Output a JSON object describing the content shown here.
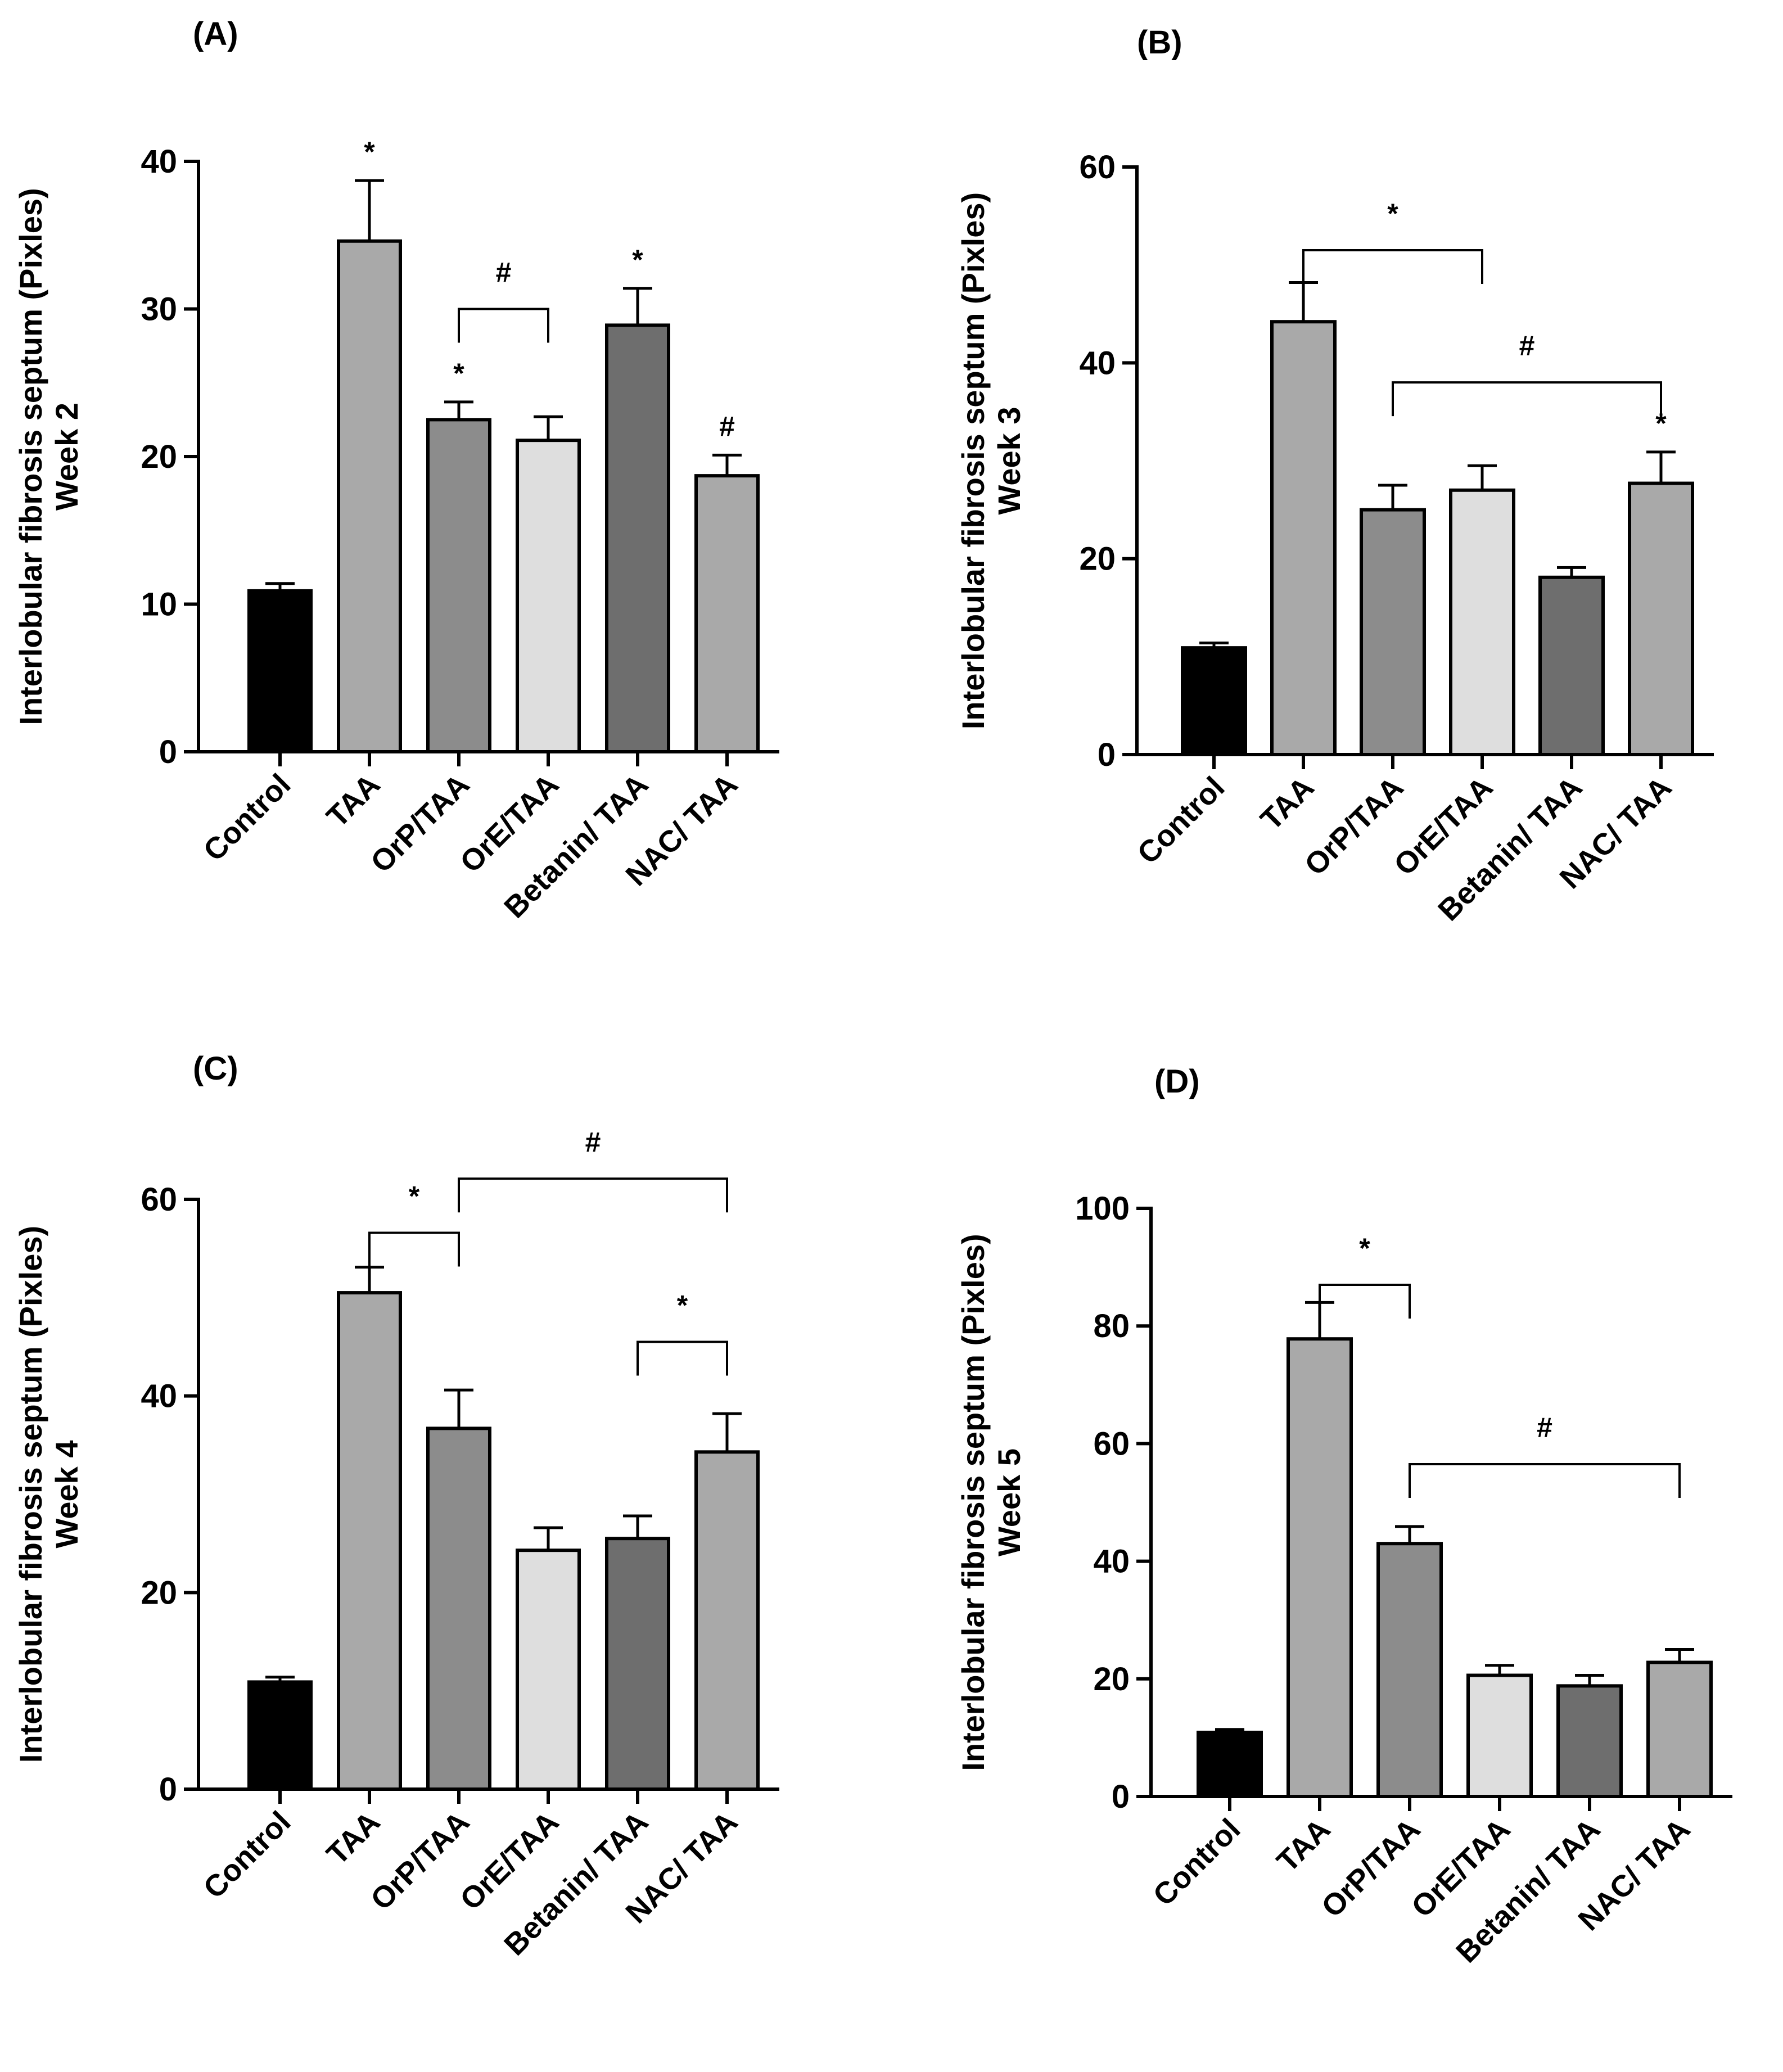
{
  "figure": {
    "panels": [
      "(A)",
      "(B)",
      "(C)",
      "(D)"
    ]
  },
  "chart_data": [
    {
      "type": "bar",
      "panel_label": "(A)",
      "ylabel_line1": "Interlobular fibrosis septum (Pixles)",
      "ylabel_line2": "Week 2",
      "categories": [
        "Control",
        "TAA",
        "OrP/TAA",
        "OrE/TAA",
        "Betanin/ TAA",
        "NAC/ TAA"
      ],
      "values": [
        10.9,
        34.6,
        22.5,
        21.1,
        28.9,
        18.7
      ],
      "errors": [
        0.5,
        4.1,
        1.2,
        1.6,
        2.5,
        1.4
      ],
      "colors": [
        "#000000",
        "#a9a9a9",
        "#8c8c8c",
        "#dedede",
        "#6e6e6e",
        "#a9a9a9"
      ],
      "ylim": [
        0,
        40
      ],
      "yticks": [
        0,
        10,
        20,
        30,
        40
      ],
      "bar_marks": [
        "",
        "*",
        "*",
        "",
        "*",
        "#"
      ],
      "brackets": [
        {
          "from": 2,
          "to": 3,
          "label": "#",
          "y": 30
        }
      ]
    },
    {
      "type": "bar",
      "panel_label": "(B)",
      "ylabel_line1": "Interlobular fibrosis septum (Pixles)",
      "ylabel_line2": "Week 3",
      "categories": [
        "Control",
        "TAA",
        "OrP/TAA",
        "OrE/TAA",
        "Betanin/ TAA",
        "NAC/ TAA"
      ],
      "values": [
        10.9,
        44.2,
        25.0,
        27.0,
        18.1,
        27.7
      ],
      "errors": [
        0.5,
        4.0,
        2.5,
        2.5,
        1.0,
        3.2
      ],
      "colors": [
        "#000000",
        "#a9a9a9",
        "#8c8c8c",
        "#dedede",
        "#6e6e6e",
        "#a9a9a9"
      ],
      "ylim": [
        0,
        60
      ],
      "yticks": [
        0,
        20,
        40,
        60
      ],
      "bar_marks": [
        "",
        "",
        "",
        "",
        "",
        "*"
      ],
      "brackets": [
        {
          "from": 1,
          "to": 3,
          "label": "*",
          "y": 51.5
        },
        {
          "from": 2,
          "to": 5,
          "label": "#",
          "y": 38
        }
      ]
    },
    {
      "type": "bar",
      "panel_label": "(C)",
      "ylabel_line1": "Interlobular fibrosis septum (Pixles)",
      "ylabel_line2": "Week 4",
      "categories": [
        "Control",
        "TAA",
        "OrP/TAA",
        "OrE/TAA",
        "Betanin/ TAA",
        "NAC/ TAA"
      ],
      "values": [
        10.9,
        50.5,
        36.7,
        24.3,
        25.5,
        34.3
      ],
      "errors": [
        0.5,
        2.6,
        3.9,
        2.3,
        2.3,
        3.9
      ],
      "colors": [
        "#000000",
        "#a9a9a9",
        "#8c8c8c",
        "#dedede",
        "#6e6e6e",
        "#a9a9a9"
      ],
      "ylim": [
        0,
        60
      ],
      "yticks": [
        0,
        20,
        40,
        60
      ],
      "bar_marks": [
        "",
        "",
        "",
        "",
        "",
        ""
      ],
      "brackets": [
        {
          "from": 1,
          "to": 2,
          "label": "*",
          "y": 56.6
        },
        {
          "from": 2,
          "to": 5,
          "label": "#",
          "y": 62.1
        },
        {
          "from": 4,
          "to": 5,
          "label": "*",
          "y": 45.5
        }
      ]
    },
    {
      "type": "bar",
      "panel_label": "(D)",
      "ylabel_line1": "Interlobular fibrosis septum (Pixles)",
      "ylabel_line2": "Week 5",
      "categories": [
        "Control",
        "TAA",
        "OrP/TAA",
        "OrE/TAA",
        "Betanin/ TAA",
        "NAC/ TAA"
      ],
      "values": [
        10.9,
        77.8,
        43.0,
        20.6,
        18.8,
        22.8
      ],
      "errors": [
        0.5,
        6.2,
        2.9,
        1.7,
        1.8,
        2.2
      ],
      "colors": [
        "#000000",
        "#a9a9a9",
        "#8c8c8c",
        "#dedede",
        "#6e6e6e",
        "#a9a9a9"
      ],
      "ylim": [
        0,
        100
      ],
      "yticks": [
        0,
        20,
        40,
        60,
        80,
        100
      ],
      "bar_marks": [
        "",
        "",
        "",
        "",
        "",
        ""
      ],
      "brackets": [
        {
          "from": 1,
          "to": 2,
          "label": "*",
          "y": 87
        },
        {
          "from": 2,
          "to": 5,
          "label": "#",
          "y": 56.5
        }
      ]
    }
  ]
}
